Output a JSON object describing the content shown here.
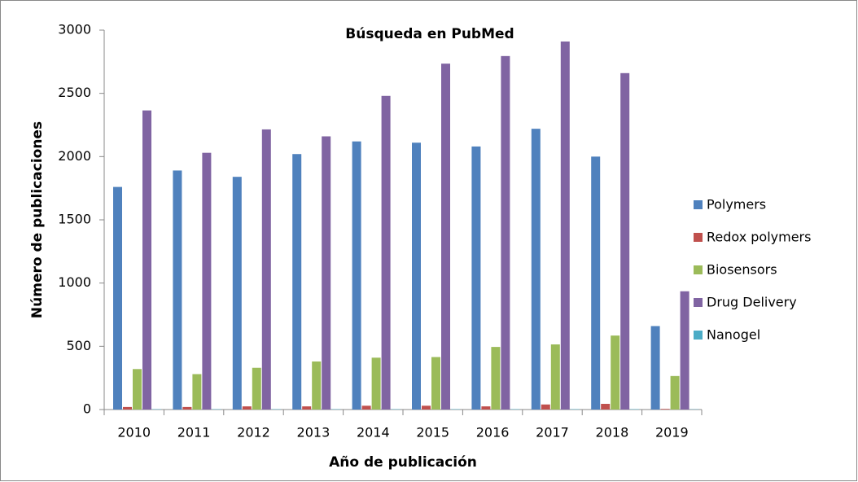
{
  "chart_data": {
    "type": "bar",
    "title": "Búsqueda en PubMed",
    "x_label": "Año de publicación",
    "y_label": "Número de publicaciones",
    "categories": [
      "2010",
      "2011",
      "2012",
      "2013",
      "2014",
      "2015",
      "2016",
      "2017",
      "2018",
      "2019"
    ],
    "series": [
      {
        "name": "Polymers",
        "color": "#4f81bd",
        "values": [
          1760,
          1890,
          1840,
          2020,
          2120,
          2110,
          2080,
          2220,
          2000,
          660
        ]
      },
      {
        "name": "Redox polymers",
        "color": "#c0504d",
        "values": [
          20,
          20,
          25,
          25,
          30,
          30,
          25,
          40,
          45,
          5
        ]
      },
      {
        "name": "Biosensors",
        "color": "#9bbb59",
        "values": [
          320,
          280,
          330,
          380,
          410,
          415,
          495,
          515,
          585,
          265
        ]
      },
      {
        "name": "Drug Delivery",
        "color": "#8064a2",
        "values": [
          2365,
          2030,
          2215,
          2160,
          2480,
          2735,
          2795,
          2910,
          2660,
          935
        ]
      },
      {
        "name": "Nanogel",
        "color": "#4bacc6",
        "values": [
          3,
          3,
          3,
          3,
          3,
          3,
          3,
          3,
          3,
          2
        ]
      }
    ],
    "ylim": [
      0,
      3000
    ],
    "yticks": [
      0,
      500,
      1000,
      1500,
      2000,
      2500,
      3000
    ],
    "grid": false,
    "legend": "right"
  }
}
